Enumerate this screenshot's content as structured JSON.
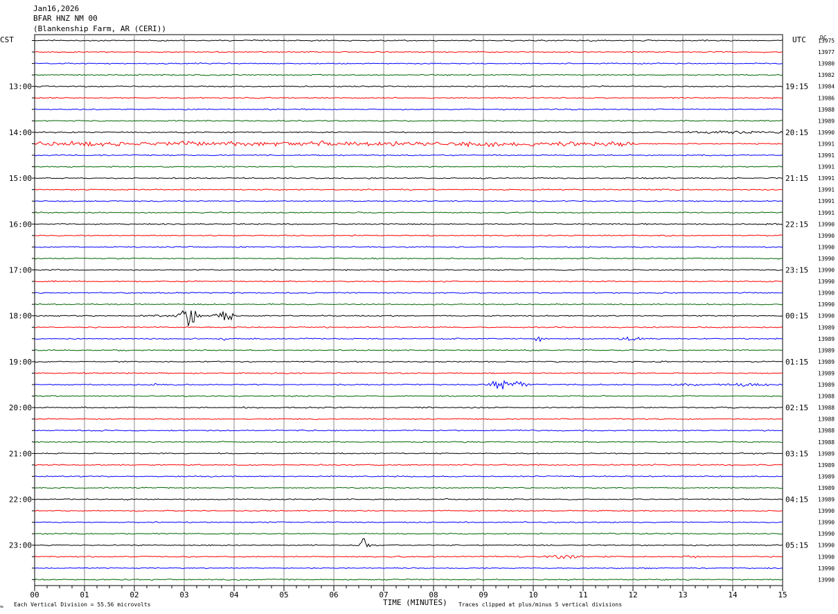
{
  "header": {
    "line1": "Jan16,2026",
    "line2": "BFAR HNZ NM 00",
    "line3": "(Blankenship Farm, AR (CERI))"
  },
  "left_tz": "CST",
  "right_tz": "UTC",
  "dc_label": "DC",
  "footer": {
    "x_axis_label": "TIME (MINUTES)",
    "scale_note": "Each Vertical Division =   55.56 microvolts",
    "clip_note": "Traces clipped at plus/minus 5 vertical divisions",
    "corner_mark": "≈"
  },
  "colors": {
    "trace_cycle": [
      "#000000",
      "#ff0000",
      "#0000ff",
      "#006400"
    ],
    "grid": "#888888"
  },
  "chart_data": {
    "type": "helicorder",
    "x_ticks": [
      "00",
      "01",
      "02",
      "03",
      "04",
      "05",
      "06",
      "07",
      "08",
      "09",
      "10",
      "11",
      "12",
      "13",
      "14",
      "15"
    ],
    "xlim": [
      0,
      15
    ],
    "row_minutes": 15,
    "left_hour_labels": [
      "13:00",
      "14:00",
      "15:00",
      "16:00",
      "17:00",
      "18:00",
      "19:00",
      "20:00",
      "21:00",
      "22:00",
      "23:00"
    ],
    "right_hour_labels": [
      "19:15",
      "20:15",
      "21:15",
      "22:15",
      "23:15",
      "00:15",
      "01:15",
      "02:15",
      "03:15",
      "04:15",
      "05:15"
    ],
    "hour_label_rows": [
      4,
      8,
      12,
      16,
      20,
      24,
      28,
      32,
      36,
      40,
      44
    ],
    "dc_offsets": [
      "13975",
      "13977",
      "13980",
      "13982",
      "13984",
      "13986",
      "13988",
      "13989",
      "13990",
      "13991",
      "13991",
      "13991",
      "13991",
      "13991",
      "13991",
      "13991",
      "13990",
      "13990",
      "13990",
      "13990",
      "13990",
      "13990",
      "13990",
      "13990",
      "13990",
      "13989",
      "13989",
      "13989",
      "13989",
      "13989",
      "13989",
      "13988",
      "13988",
      "13988",
      "13988",
      "13988",
      "13989",
      "13989",
      "13989",
      "13989",
      "13989",
      "13990",
      "13990",
      "13990",
      "13990",
      "13990",
      "13990",
      "13990"
    ],
    "events": [
      {
        "row": 24,
        "minute": 3.1,
        "width_min": 0.3,
        "amp_div": 5
      },
      {
        "row": 24,
        "minute": 3.8,
        "width_min": 0.25,
        "amp_div": 4
      },
      {
        "row": 24,
        "minute": 2.5,
        "width_min": 0.6,
        "amp_div": 0.5
      },
      {
        "row": 30,
        "minute": 9.45,
        "width_min": 0.55,
        "amp_div": 3
      },
      {
        "row": 30,
        "minute": 13.1,
        "width_min": 0.4,
        "amp_div": 0.7
      },
      {
        "row": 30,
        "minute": 14.2,
        "width_min": 0.9,
        "amp_div": 0.8
      },
      {
        "row": 30,
        "minute": 2.4,
        "width_min": 0.2,
        "amp_div": 0.8
      },
      {
        "row": 44,
        "minute": 6.6,
        "width_min": 0.15,
        "amp_div": 4
      },
      {
        "row": 45,
        "minute": 10.6,
        "width_min": 0.5,
        "amp_div": 1.2
      },
      {
        "row": 45,
        "minute": 13.2,
        "width_min": 0.2,
        "amp_div": 0.8
      },
      {
        "row": 21,
        "minute": 8.2,
        "width_min": 0.03,
        "amp_div": 2.5
      },
      {
        "row": 26,
        "minute": 10.1,
        "width_min": 0.08,
        "amp_div": 2.5
      },
      {
        "row": 26,
        "minute": 11.95,
        "width_min": 0.3,
        "amp_div": 1.2
      },
      {
        "row": 26,
        "minute": 3.8,
        "width_min": 0.05,
        "amp_div": 1
      },
      {
        "row": 26,
        "minute": 6.9,
        "width_min": 0.05,
        "amp_div": 1
      },
      {
        "row": 17,
        "minute": 6.4,
        "width_min": 0.04,
        "amp_div": 1.2
      },
      {
        "row": 8,
        "minute": 13.9,
        "width_min": 2.0,
        "amp_div": 0.6
      },
      {
        "row": 16,
        "minute": 14.7,
        "width_min": 0.6,
        "amp_div": 0.5
      }
    ],
    "noisy_rows": [
      {
        "row": 9,
        "from_min": 0,
        "to_min": 12.0,
        "amp_div": 0.9
      }
    ],
    "grid": true
  }
}
